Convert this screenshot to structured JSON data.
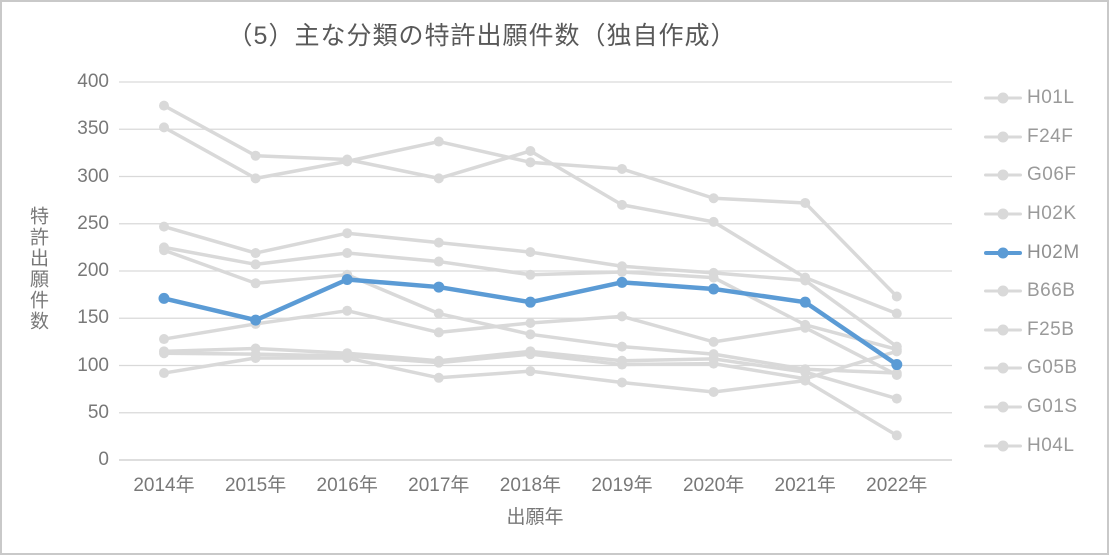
{
  "title": "（5）主な分類の特許出願件数（独自作成）",
  "colors": {
    "muted_series": "#d9d9d9",
    "highlight_series": "#5b9bd5",
    "gridline": "#d9d9d9",
    "axis_line": "#c9c9c9",
    "title_text": "#595959",
    "tick_text": "#787878",
    "legend_text": "#9a9a9a"
  },
  "chart_data": {
    "type": "line",
    "title": "（5）主な分類の特許出願件数（独自作成）",
    "x": [
      "2014年",
      "2015年",
      "2016年",
      "2017年",
      "2018年",
      "2019年",
      "2020年",
      "2021年",
      "2022年"
    ],
    "xlabel": "出願年",
    "ylabel": "特許出願件数",
    "ylim": [
      0,
      400
    ],
    "yticks": [
      0,
      50,
      100,
      150,
      200,
      250,
      300,
      350,
      400
    ],
    "grid": true,
    "legend_position": "right",
    "series": [
      {
        "name": "H01L",
        "highlighted": false,
        "values": [
          375,
          322,
          318,
          298,
          327,
          270,
          252,
          193,
          155
        ]
      },
      {
        "name": "F24F",
        "highlighted": false,
        "values": [
          352,
          298,
          316,
          337,
          315,
          308,
          277,
          272,
          173
        ]
      },
      {
        "name": "G06F",
        "highlighted": false,
        "values": [
          247,
          219,
          240,
          230,
          220,
          205,
          198,
          190,
          120
        ]
      },
      {
        "name": "H02K",
        "highlighted": false,
        "values": [
          225,
          207,
          219,
          210,
          196,
          199,
          193,
          143,
          117
        ]
      },
      {
        "name": "H02M",
        "highlighted": true,
        "values": [
          171,
          148,
          191,
          183,
          167,
          188,
          181,
          167,
          101
        ]
      },
      {
        "name": "B66B",
        "highlighted": false,
        "values": [
          222,
          187,
          196,
          155,
          133,
          120,
          112,
          96,
          92
        ]
      },
      {
        "name": "F25B",
        "highlighted": false,
        "values": [
          128,
          144,
          158,
          135,
          145,
          152,
          125,
          140,
          90
        ]
      },
      {
        "name": "G05B",
        "highlighted": false,
        "values": [
          115,
          118,
          113,
          105,
          115,
          105,
          107,
          93,
          65
        ]
      },
      {
        "name": "G01S",
        "highlighted": false,
        "values": [
          113,
          112,
          110,
          103,
          112,
          101,
          102,
          86,
          115
        ]
      },
      {
        "name": "H04L",
        "highlighted": false,
        "values": [
          92,
          108,
          108,
          87,
          94,
          82,
          72,
          84,
          26
        ]
      }
    ]
  }
}
